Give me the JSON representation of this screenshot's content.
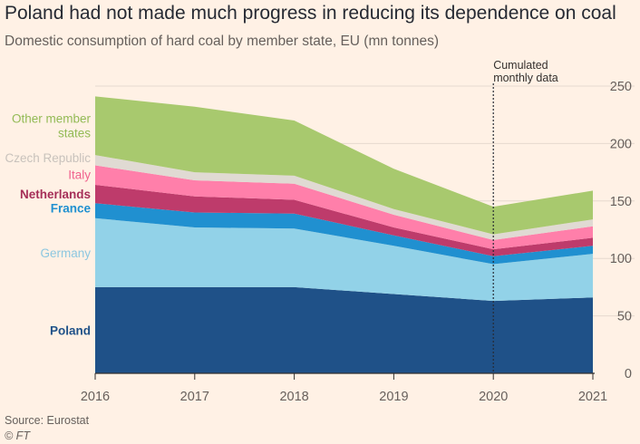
{
  "title": "Poland had not made much progress in reducing its dependence on coal",
  "subtitle": "Domestic consumption of hard coal by member state, EU (mn tonnes)",
  "source": "Source: Eurostat",
  "credit": "© FT",
  "annotation": "Cumulated\nmonthly data",
  "chart_data": {
    "type": "area",
    "stacked": true,
    "x": [
      2016,
      2017,
      2018,
      2019,
      2020,
      2021
    ],
    "ylim": [
      0,
      250
    ],
    "yticks": [
      0,
      50,
      100,
      150,
      200,
      250
    ],
    "y_axis_side": "right",
    "grid": true,
    "series": [
      {
        "name": "Poland",
        "color": "#1F5188",
        "label_color": "#1F5188",
        "values": [
          75,
          75,
          75,
          69,
          63,
          66
        ]
      },
      {
        "name": "Germany",
        "color": "#92D2E8",
        "label_color": "#8CC7E0",
        "values": [
          60,
          52,
          51,
          42,
          32,
          38
        ]
      },
      {
        "name": "France",
        "color": "#2090D0",
        "label_color": "#2090D0",
        "values": [
          13,
          13,
          13,
          9,
          7,
          7
        ]
      },
      {
        "name": "Netherlands",
        "color": "#BE3B6B",
        "label_color": "#A52F58",
        "values": [
          16,
          14,
          12,
          7,
          6,
          7
        ]
      },
      {
        "name": "Italy",
        "color": "#FF7FAA",
        "label_color": "#F0628E",
        "values": [
          17,
          14,
          14,
          11,
          8,
          10
        ]
      },
      {
        "name": "Czech Republic",
        "color": "#E0DAD3",
        "label_color": "#C8C2BC",
        "values": [
          9,
          7,
          7,
          5,
          5,
          6
        ]
      },
      {
        "name": "Other member\nstates",
        "color": "#A8C96E",
        "label_color": "#93BA55",
        "values": [
          51,
          57,
          48,
          35,
          24,
          25
        ]
      }
    ],
    "annotation_x": 2020
  }
}
